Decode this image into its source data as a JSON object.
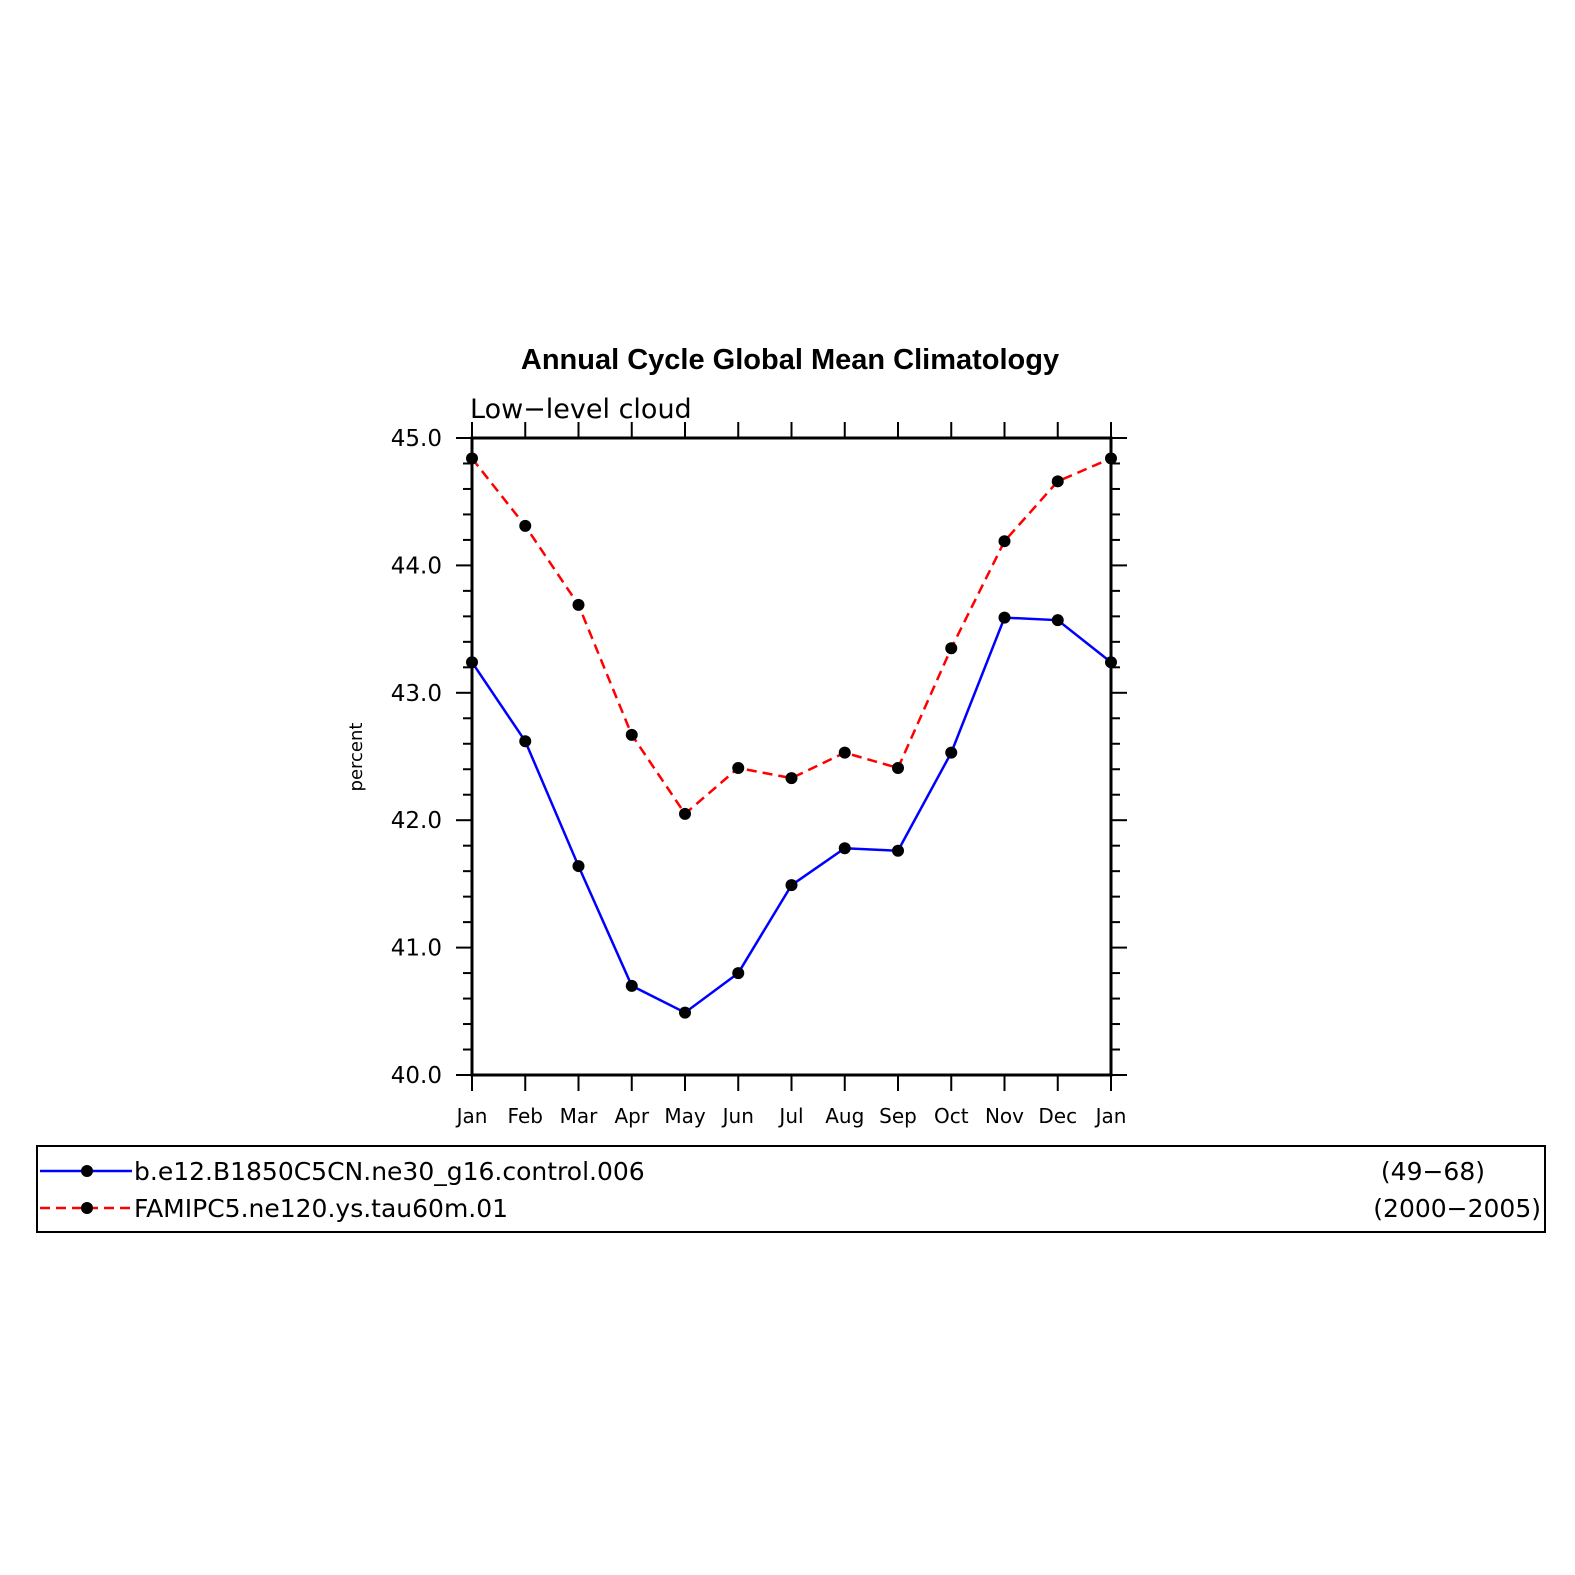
{
  "chart_data": {
    "type": "line",
    "title": "Annual Cycle Global Mean Climatology",
    "subtitle": "Low−level cloud",
    "ylabel": "percent",
    "xlabel": "",
    "ylim": [
      40.0,
      45.0
    ],
    "yticks": [
      "40.0",
      "41.0",
      "42.0",
      "43.0",
      "44.0",
      "45.0"
    ],
    "categories": [
      "Jan",
      "Feb",
      "Mar",
      "Apr",
      "May",
      "Jun",
      "Jul",
      "Aug",
      "Sep",
      "Oct",
      "Nov",
      "Dec",
      "Jan"
    ],
    "grid": false,
    "legend_position": "bottom",
    "series": [
      {
        "name": "b.e12.B1850C5CN.ne30_g16.control.006",
        "period": "(49−68)",
        "color": "#0000ff",
        "style": "solid",
        "values": [
          43.24,
          42.62,
          41.64,
          40.7,
          40.49,
          40.8,
          41.49,
          41.78,
          41.76,
          42.53,
          43.59,
          43.57,
          43.24
        ]
      },
      {
        "name": "FAMIPC5.ne120.ys.tau60m.01",
        "period": "(2000−2005)",
        "color": "#ff0000",
        "style": "dashed",
        "values": [
          44.84,
          44.31,
          43.69,
          42.67,
          42.05,
          42.41,
          42.33,
          42.53,
          42.41,
          43.35,
          44.19,
          44.66,
          44.84
        ]
      }
    ]
  }
}
